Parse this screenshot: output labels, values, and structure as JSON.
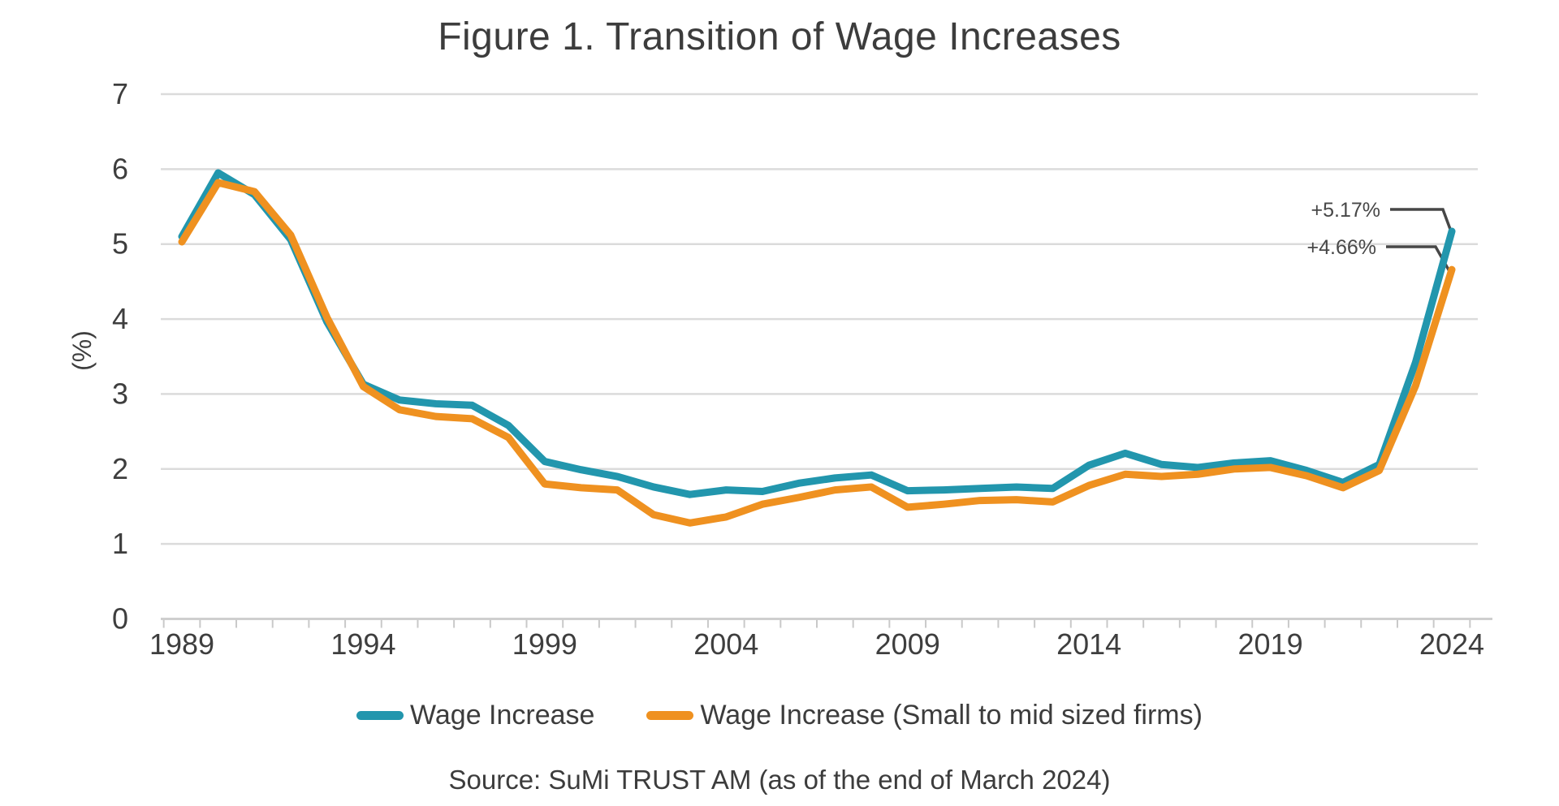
{
  "title": "Figure 1. Transition of Wage Increases",
  "y_axis_label": "(%)",
  "source": "Source: SuMi TRUST AM (as of the end of March 2024)",
  "colors": {
    "series_main": "#2296AD",
    "series_sme": "#EF9120",
    "gridline": "#DBDBDB",
    "axis_line": "#CFCFCF",
    "tick_mark": "#C9C9C9",
    "text": "#3E3E3E",
    "annotation": "#474747",
    "background": "#FFFFFF"
  },
  "legend": [
    {
      "label": "Wage Increase",
      "color": "#2296AD"
    },
    {
      "label": "Wage Increase (Small to mid sized firms)",
      "color": "#EF9120"
    }
  ],
  "annotations": [
    {
      "label": "+5.17%",
      "series": "Wage Increase",
      "year": 2024,
      "value": 5.17
    },
    {
      "label": "+4.66%",
      "series": "Wage Increase (Small to mid sized firms)",
      "year": 2024,
      "value": 4.66
    }
  ],
  "chart_data": {
    "type": "line",
    "title": "Figure 1. Transition of Wage Increases",
    "xlabel": "",
    "ylabel": "(%)",
    "ylim": [
      0,
      7
    ],
    "y_ticks": [
      0,
      1,
      2,
      3,
      4,
      5,
      6,
      7
    ],
    "grid": "horizontal",
    "legend_position": "bottom",
    "x": [
      1989,
      1990,
      1991,
      1992,
      1993,
      1994,
      1995,
      1996,
      1997,
      1998,
      1999,
      2000,
      2001,
      2002,
      2003,
      2004,
      2005,
      2006,
      2007,
      2008,
      2009,
      2010,
      2011,
      2012,
      2013,
      2014,
      2015,
      2016,
      2017,
      2018,
      2019,
      2020,
      2021,
      2022,
      2023,
      2024
    ],
    "x_tick_labels": [
      "1989",
      "1994",
      "1999",
      "2004",
      "2009",
      "2014",
      "2019",
      "2024"
    ],
    "series": [
      {
        "name": "Wage Increase",
        "color": "#2296AD",
        "values": [
          5.1,
          5.95,
          5.66,
          5.06,
          3.96,
          3.13,
          2.92,
          2.87,
          2.85,
          2.58,
          2.1,
          1.99,
          1.9,
          1.76,
          1.66,
          1.72,
          1.7,
          1.81,
          1.88,
          1.92,
          1.71,
          1.72,
          1.74,
          1.76,
          1.74,
          2.05,
          2.21,
          2.06,
          2.02,
          2.08,
          2.11,
          1.98,
          1.82,
          2.06,
          3.42,
          5.17
        ]
      },
      {
        "name": "Wage Increase (Small to mid sized firms)",
        "color": "#EF9120",
        "values": [
          5.03,
          5.82,
          5.7,
          5.12,
          4.02,
          3.1,
          2.79,
          2.7,
          2.67,
          2.42,
          1.8,
          1.75,
          1.72,
          1.39,
          1.28,
          1.36,
          1.53,
          1.62,
          1.72,
          1.76,
          1.49,
          1.53,
          1.58,
          1.59,
          1.56,
          1.78,
          1.93,
          1.9,
          1.93,
          2.0,
          2.02,
          1.91,
          1.75,
          1.98,
          3.11,
          4.66
        ]
      }
    ]
  }
}
